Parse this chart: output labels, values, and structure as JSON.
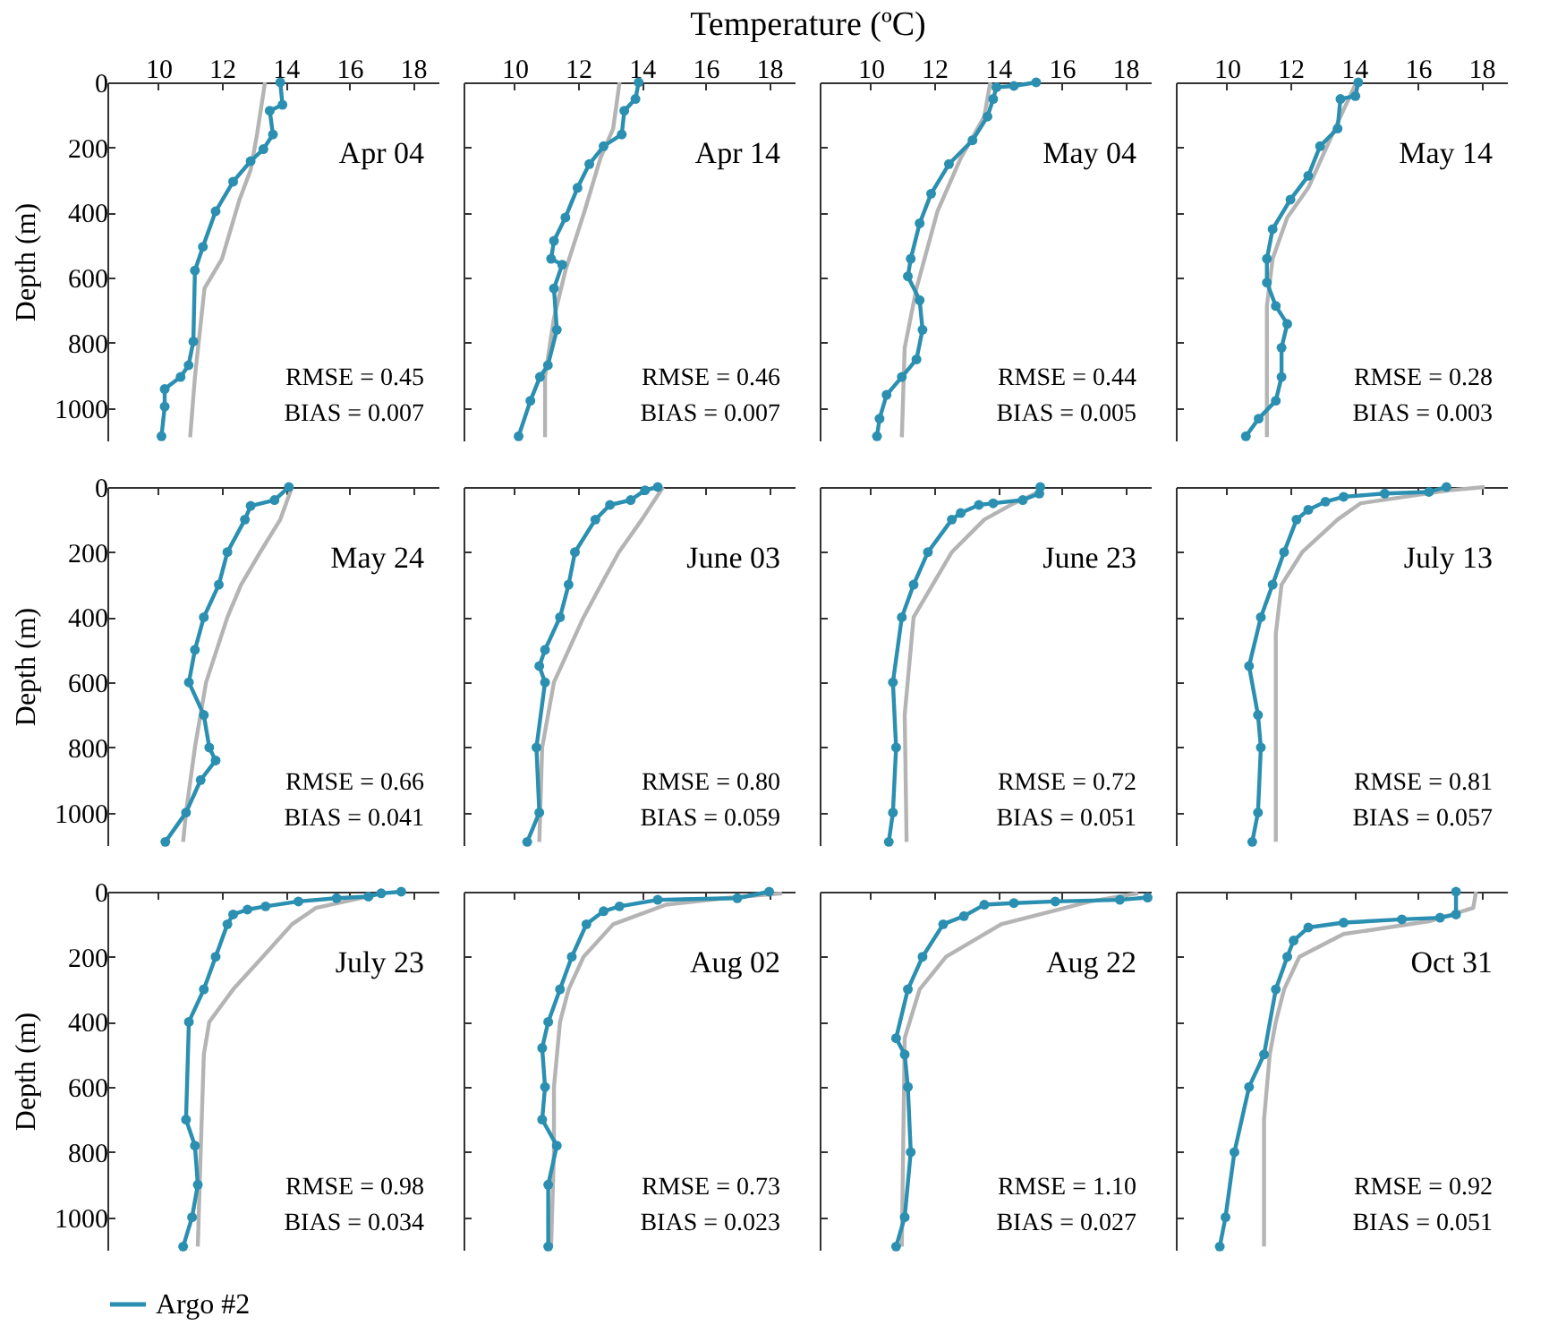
{
  "chart_data": [
    {
      "type": "line",
      "ylabel": "Depth (m)",
      "xlim": [
        8.4,
        18.8
      ],
      "xticks": [
        10,
        12,
        14,
        16,
        18
      ],
      "ylim": [
        1100,
        0
      ],
      "yticks": [
        0,
        200,
        400,
        600,
        800,
        1000
      ],
      "legend": "bottom",
      "annotations": [
        "Apr 04",
        "RMSE = 0.45",
        "BIAS = 0.007"
      ],
      "series": [
        {
          "color": "#b4b4b4",
          "marker": "none",
          "x": [
            13.35,
            13.3,
            13.1,
            12.9,
            12.55,
            12.0,
            11.45,
            11.15,
            11.0
          ],
          "values": [
            0,
            33,
            160,
            269,
            360,
            542,
            633,
            905,
            1090
          ]
        },
        {
          "name": "Argo #2",
          "color": "#2a8fb0",
          "marker": "circle",
          "x": [
            13.83,
            13.9,
            13.5,
            13.6,
            13.3,
            12.9,
            12.35,
            11.8,
            11.4,
            11.15,
            11.1,
            10.95,
            10.7,
            10.2,
            10.2,
            10.1
          ],
          "values": [
            0,
            69,
            87,
            160,
            205,
            242,
            305,
            396,
            505,
            578,
            796,
            869,
            905,
            942,
            996,
            1087
          ]
        }
      ]
    },
    {
      "type": "line",
      "tick_labels": "x",
      "xlabel": "Temperature (ºC)",
      "xlim": [
        8.4,
        18.8
      ],
      "xticks": [
        10,
        12,
        14,
        16,
        18
      ],
      "ylim": [
        1100,
        0
      ],
      "yticks": [
        0,
        200,
        400,
        600,
        800,
        1000
      ],
      "annotations": [
        "Apr 14",
        "RMSE = 0.46",
        "BIAS = 0.007"
      ],
      "series": [
        {
          "color": "#b4b4b4",
          "marker": "none",
          "x": [
            13.3,
            13.1,
            12.7,
            12.2,
            11.6,
            11.24,
            10.96,
            10.96
          ],
          "values": [
            0,
            142,
            233,
            396,
            578,
            724,
            905,
            1090
          ]
        },
        {
          "name": "Argo #2",
          "color": "#2a8fb0",
          "marker": "circle",
          "x": [
            13.9,
            13.8,
            13.45,
            13.37,
            12.8,
            12.35,
            11.98,
            11.6,
            11.24,
            11.15,
            11.5,
            11.24,
            11.33,
            11.05,
            10.8,
            10.5,
            10.13
          ],
          "values": [
            0,
            51,
            87,
            160,
            196,
            251,
            324,
            415,
            487,
            542,
            560,
            633,
            760,
            869,
            905,
            978,
            1087
          ]
        }
      ]
    },
    {
      "type": "line",
      "tick_labels": "x",
      "xlim": [
        8.4,
        18.8
      ],
      "xticks": [
        10,
        12,
        14,
        16,
        18
      ],
      "ylim": [
        1100,
        0
      ],
      "yticks": [
        0,
        200,
        400,
        600,
        800,
        1000
      ],
      "annotations": [
        "May 04",
        "RMSE = 0.44",
        "BIAS = 0.005"
      ],
      "series": [
        {
          "color": "#b4b4b4",
          "marker": "none",
          "x": [
            13.76,
            13.57,
            12.83,
            12.1,
            11.44,
            11.07,
            10.98
          ],
          "values": [
            0,
            105,
            233,
            396,
            633,
            815,
            1090
          ]
        },
        {
          "name": "Argo #2",
          "color": "#2a8fb0",
          "marker": "circle",
          "x": [
            15.2,
            14.5,
            13.95,
            13.85,
            13.67,
            13.2,
            12.46,
            11.9,
            11.54,
            11.26,
            11.17,
            11.54,
            11.63,
            11.44,
            10.98,
            10.5,
            10.28,
            10.2
          ],
          "values": [
            0,
            11,
            15,
            51,
            105,
            178,
            251,
            342,
            433,
            542,
            596,
            669,
            760,
            851,
            905,
            960,
            1033,
            1087
          ]
        }
      ]
    },
    {
      "type": "line",
      "tick_labels": "x",
      "xlim": [
        8.4,
        18.8
      ],
      "xticks": [
        10,
        12,
        14,
        16,
        18
      ],
      "ylim": [
        1100,
        0
      ],
      "yticks": [
        0,
        200,
        400,
        600,
        800,
        1000
      ],
      "annotations": [
        "May 14",
        "RMSE = 0.28",
        "BIAS = 0.003"
      ],
      "series": [
        {
          "color": "#b4b4b4",
          "marker": "none",
          "x": [
            14.07,
            13.48,
            12.56,
            11.9,
            11.44,
            11.26,
            11.26
          ],
          "values": [
            0,
            124,
            324,
            415,
            542,
            687,
            1090
          ]
        },
        {
          "name": "Argo #2",
          "color": "#2a8fb0",
          "marker": "circle",
          "x": [
            14.13,
            14.04,
            13.57,
            13.48,
            12.93,
            12.56,
            12.0,
            11.44,
            11.26,
            11.26,
            11.54,
            11.9,
            11.72,
            11.72,
            11.54,
            11.0,
            10.6
          ],
          "values": [
            0,
            42,
            51,
            142,
            196,
            287,
            360,
            451,
            542,
            615,
            687,
            742,
            815,
            905,
            978,
            1033,
            1087
          ]
        }
      ]
    },
    {
      "type": "line",
      "tick_labels": "y",
      "ylabel": "Depth (m)",
      "xlim": [
        8.4,
        18.8
      ],
      "xticks": [
        10,
        12,
        14,
        16,
        18
      ],
      "ylim": [
        1100,
        0
      ],
      "yticks": [
        0,
        200,
        400,
        600,
        800,
        1000
      ],
      "annotations": [
        "May 24",
        "RMSE = 0.66",
        "BIAS = 0.041"
      ],
      "series": [
        {
          "color": "#b4b4b4",
          "marker": "none",
          "x": [
            14.2,
            13.83,
            13.2,
            12.6,
            12.17,
            11.5,
            11.15,
            10.87,
            10.78
          ],
          "values": [
            0,
            100,
            200,
            300,
            400,
            600,
            800,
            1000,
            1090
          ]
        },
        {
          "name": "Argo #2",
          "color": "#2a8fb0",
          "marker": "circle",
          "x": [
            14.1,
            13.65,
            12.9,
            12.72,
            12.17,
            11.9,
            11.43,
            11.15,
            10.96,
            11.43,
            11.6,
            11.8,
            11.33,
            10.87,
            10.22
          ],
          "values": [
            0,
            40,
            58,
            100,
            200,
            300,
            400,
            500,
            600,
            700,
            800,
            840,
            900,
            1000,
            1090
          ]
        }
      ]
    },
    {
      "type": "line",
      "tick_labels": false,
      "xlim": [
        8.4,
        18.8
      ],
      "xticks": [
        10,
        12,
        14,
        16,
        18
      ],
      "ylim": [
        1100,
        0
      ],
      "yticks": [
        0,
        200,
        400,
        600,
        800,
        1000
      ],
      "annotations": [
        "June 03",
        "RMSE = 0.80",
        "BIAS = 0.059"
      ],
      "series": [
        {
          "color": "#b4b4b4",
          "marker": "none",
          "x": [
            14.67,
            14.0,
            13.28,
            12.72,
            12.17,
            11.24,
            10.87,
            10.78
          ],
          "values": [
            0,
            100,
            200,
            300,
            400,
            600,
            800,
            1090
          ]
        },
        {
          "name": "Argo #2",
          "color": "#2a8fb0",
          "marker": "circle",
          "x": [
            14.5,
            14.1,
            13.65,
            13.0,
            12.54,
            11.9,
            11.7,
            11.43,
            10.96,
            10.78,
            10.96,
            10.69,
            10.78,
            10.4
          ],
          "values": [
            0,
            10,
            40,
            55,
            100,
            200,
            300,
            400,
            500,
            550,
            600,
            800,
            1000,
            1090
          ]
        }
      ]
    },
    {
      "type": "line",
      "tick_labels": false,
      "xlim": [
        8.4,
        18.8
      ],
      "xticks": [
        10,
        12,
        14,
        16,
        18
      ],
      "ylim": [
        1100,
        0
      ],
      "yticks": [
        0,
        200,
        400,
        600,
        800,
        1000
      ],
      "annotations": [
        "June 23",
        "RMSE = 0.72",
        "BIAS = 0.051"
      ],
      "series": [
        {
          "color": "#b4b4b4",
          "marker": "none",
          "x": [
            15.4,
            14.5,
            13.57,
            12.55,
            11.35,
            11.07,
            11.13
          ],
          "values": [
            10,
            50,
            100,
            200,
            400,
            700,
            1090
          ]
        },
        {
          "name": "Argo #2",
          "color": "#2a8fb0",
          "marker": "circle",
          "x": [
            15.33,
            15.3,
            14.78,
            13.85,
            13.4,
            12.83,
            12.55,
            11.8,
            11.35,
            10.98,
            10.7,
            10.8,
            10.7,
            10.57
          ],
          "values": [
            0,
            20,
            40,
            50,
            55,
            80,
            100,
            200,
            300,
            400,
            600,
            800,
            1000,
            1090
          ]
        }
      ]
    },
    {
      "type": "line",
      "tick_labels": false,
      "xlim": [
        8.4,
        18.8
      ],
      "xticks": [
        10,
        12,
        14,
        16,
        18
      ],
      "ylim": [
        1100,
        0
      ],
      "yticks": [
        0,
        200,
        400,
        600,
        800,
        1000
      ],
      "annotations": [
        "July 13",
        "RMSE = 0.81",
        "BIAS = 0.057"
      ],
      "series": [
        {
          "color": "#b4b4b4",
          "marker": "none",
          "x": [
            18.1,
            17.0,
            14.2,
            13.48,
            12.37,
            11.72,
            11.54,
            11.54
          ],
          "values": [
            0,
            10,
            50,
            100,
            200,
            300,
            450,
            1090
          ]
        },
        {
          "name": "Argo #2",
          "color": "#2a8fb0",
          "marker": "circle",
          "x": [
            16.9,
            16.35,
            14.96,
            13.67,
            13.1,
            12.56,
            12.19,
            11.8,
            11.44,
            11.07,
            10.7,
            10.98,
            11.07,
            10.98,
            10.8
          ],
          "values": [
            0,
            15,
            20,
            30,
            45,
            70,
            100,
            200,
            300,
            400,
            550,
            700,
            800,
            1000,
            1090
          ]
        }
      ]
    },
    {
      "type": "line",
      "tick_labels": "y",
      "ylabel": "Depth (m)",
      "xlim": [
        8.4,
        18.8
      ],
      "xticks": [
        10,
        12,
        14,
        16,
        18
      ],
      "ylim": [
        1100,
        0
      ],
      "yticks": [
        0,
        200,
        400,
        600,
        800,
        1000
      ],
      "annotations": [
        "July 23",
        "RMSE = 0.98",
        "BIAS = 0.034"
      ],
      "series": [
        {
          "color": "#b4b4b4",
          "marker": "none",
          "x": [
            16.8,
            14.95,
            14.2,
            13.28,
            12.35,
            11.6,
            11.43,
            11.33,
            11.24
          ],
          "values": [
            10,
            50,
            100,
            200,
            300,
            400,
            500,
            800,
            1090
          ]
        },
        {
          "name": "Argo #2",
          "color": "#2a8fb0",
          "marker": "circle",
          "x": [
            17.63,
            17.0,
            16.6,
            15.6,
            14.4,
            13.37,
            12.8,
            12.35,
            12.17,
            11.8,
            11.43,
            10.96,
            10.87,
            11.15,
            11.24,
            11.06,
            10.78
          ],
          "values": [
            0,
            5,
            15,
            20,
            30,
            45,
            55,
            70,
            100,
            200,
            300,
            400,
            700,
            780,
            900,
            1000,
            1090
          ]
        }
      ]
    },
    {
      "type": "line",
      "tick_labels": false,
      "xlim": [
        8.4,
        18.8
      ],
      "xticks": [
        10,
        12,
        14,
        16,
        18
      ],
      "ylim": [
        1100,
        0
      ],
      "yticks": [
        0,
        200,
        400,
        600,
        800,
        1000
      ],
      "annotations": [
        "Aug 02",
        "RMSE = 0.73",
        "BIAS = 0.023"
      ],
      "series": [
        {
          "color": "#b4b4b4",
          "marker": "none",
          "x": [
            18.4,
            16.6,
            14.76,
            13.1,
            12.17,
            11.7,
            11.43,
            11.24,
            11.24,
            11.15
          ],
          "values": [
            5,
            20,
            40,
            100,
            200,
            300,
            400,
            600,
            800,
            1090
          ]
        },
        {
          "name": "Argo #2",
          "color": "#2a8fb0",
          "marker": "circle",
          "x": [
            18.0,
            17.0,
            14.5,
            13.3,
            12.8,
            12.26,
            11.8,
            11.43,
            11.06,
            10.87,
            10.96,
            10.87,
            11.33,
            11.06,
            11.06
          ],
          "values": [
            0,
            20,
            25,
            45,
            60,
            100,
            200,
            300,
            400,
            480,
            600,
            700,
            780,
            900,
            1090
          ]
        }
      ]
    },
    {
      "type": "line",
      "tick_labels": false,
      "xlim": [
        8.4,
        18.8
      ],
      "xticks": [
        10,
        12,
        14,
        16,
        18
      ],
      "ylim": [
        1100,
        0
      ],
      "yticks": [
        0,
        200,
        400,
        600,
        800,
        1000
      ],
      "annotations": [
        "Aug 22",
        "RMSE = 1.10",
        "BIAS = 0.027"
      ],
      "series": [
        {
          "color": "#b4b4b4",
          "marker": "none",
          "x": [
            18.4,
            16.9,
            14.1,
            12.37,
            11.54,
            11.07,
            10.98
          ],
          "values": [
            5,
            30,
            100,
            200,
            300,
            450,
            1090
          ]
        },
        {
          "name": "Argo #2",
          "color": "#2a8fb0",
          "marker": "circle",
          "x": [
            18.7,
            17.83,
            15.8,
            14.5,
            13.57,
            12.93,
            12.28,
            11.63,
            11.17,
            10.8,
            11.07,
            11.17,
            11.26,
            11.07,
            10.8
          ],
          "values": [
            18,
            25,
            30,
            35,
            40,
            75,
            100,
            200,
            300,
            450,
            500,
            600,
            800,
            1000,
            1090
          ]
        }
      ]
    },
    {
      "type": "line",
      "tick_labels": false,
      "xlim": [
        8.4,
        18.8
      ],
      "xticks": [
        10,
        12,
        14,
        16,
        18
      ],
      "ylim": [
        1100,
        0
      ],
      "yticks": [
        0,
        200,
        400,
        600,
        800,
        1000
      ],
      "annotations": [
        "Oct 31",
        "RMSE = 0.92",
        "BIAS = 0.051"
      ],
      "series": [
        {
          "color": "#b4b4b4",
          "marker": "none",
          "x": [
            17.83,
            17.74,
            16.4,
            13.67,
            12.28,
            11.8,
            11.54,
            11.35,
            11.17,
            11.17
          ],
          "values": [
            0,
            50,
            90,
            130,
            200,
            300,
            400,
            500,
            700,
            1090
          ]
        },
        {
          "name": "Argo #2",
          "color": "#2a8fb0",
          "marker": "circle",
          "x": [
            17.2,
            17.2,
            16.7,
            15.5,
            13.67,
            12.56,
            12.1,
            11.9,
            11.54,
            11.17,
            10.7,
            10.24,
            9.96,
            9.78
          ],
          "values": [
            0,
            70,
            80,
            85,
            95,
            110,
            150,
            200,
            300,
            500,
            600,
            800,
            1000,
            1090
          ]
        }
      ]
    }
  ]
}
